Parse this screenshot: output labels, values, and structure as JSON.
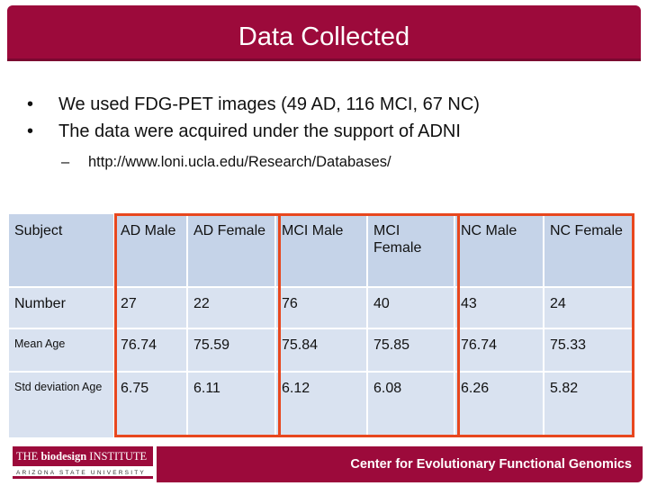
{
  "slide": {
    "title": "Data Collected",
    "bullets": [
      "We used FDG-PET images (49 AD, 116 MCI, 67 NC)",
      "The data were acquired under the support of ADNI"
    ],
    "sub_bullet": "http://www.loni.ucla.edu/Research/Databases/"
  },
  "table": {
    "header": [
      "Subject",
      "AD Male",
      "AD Female",
      "MCI Male",
      "MCI Female",
      "NC Male",
      "NC Female"
    ],
    "rows": [
      [
        "Number",
        "27",
        "22",
        "76",
        "40",
        "43",
        "24"
      ],
      [
        "Mean Age",
        "76.74",
        "75.59",
        "75.84",
        "75.85",
        "76.74",
        "75.33"
      ],
      [
        "Std deviation Age",
        "6.75",
        "6.11",
        "6.12",
        "6.08",
        "6.26",
        "5.82"
      ]
    ]
  },
  "footer": {
    "logo_text_left": "THE ",
    "logo_text_bold": "biodesign",
    "logo_text_right": " INSTITUTE",
    "logo_subtext": "ARIZONA STATE UNIVERSITY",
    "center_name": "Center for Evolutionary Functional Genomics"
  },
  "colors": {
    "brand": "#9c0a3b",
    "highlight": "#e8471e",
    "table_header": "#c5d3e8",
    "table_body": "#d9e2f0"
  }
}
